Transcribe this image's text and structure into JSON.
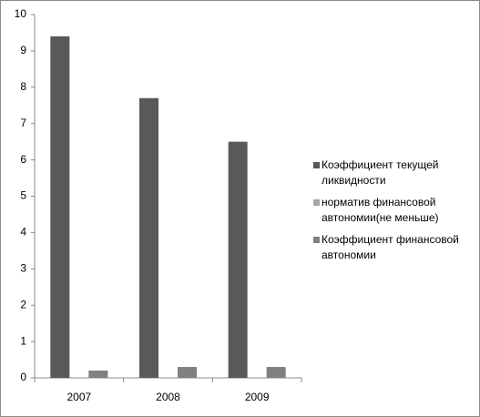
{
  "chart_data": {
    "type": "bar",
    "categories": [
      "2007",
      "2008",
      "2009"
    ],
    "series": [
      {
        "name": "Коэффициент текущей ликвидности",
        "color": "#595959",
        "values": [
          9.4,
          7.7,
          6.5
        ]
      },
      {
        "name": "норматив финансовой автономии(не меньше)",
        "color": "#a6a6a6",
        "values": [
          null,
          null,
          null
        ]
      },
      {
        "name": "Коэффициент финансовой автономии",
        "color": "#808080",
        "values": [
          0.2,
          0.3,
          0.3
        ]
      }
    ],
    "ylim": [
      0,
      10
    ],
    "yticks": [
      0,
      1,
      2,
      3,
      4,
      5,
      6,
      7,
      8,
      9,
      10
    ],
    "legend": "right"
  }
}
